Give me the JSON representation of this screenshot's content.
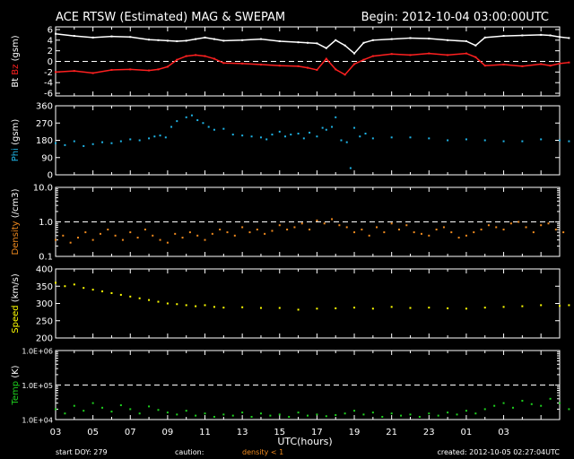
{
  "header": {
    "title": "ACE RTSW (Estimated) MAG & SWEPAM",
    "begin": "Begin: 2012-10-04 03:00:00UTC"
  },
  "footer": {
    "start_doy": "start DOY: 279",
    "caution_label": "caution:",
    "caution_text": "density < 1",
    "created": "created: 2012-10-05 02:27:04UTC"
  },
  "xaxis": {
    "title": "UTC(hours)",
    "tick_labels": [
      "03",
      "05",
      "07",
      "09",
      "11",
      "13",
      "15",
      "17",
      "19",
      "21",
      "23",
      "01",
      "03"
    ]
  },
  "colors": {
    "bt": "#ffffff",
    "bz": "#ff2020",
    "phi": "#1fb4e6",
    "density": "#f08a1e",
    "speed": "#ffff00",
    "temp": "#1ed21e",
    "axis": "#ffffff"
  },
  "chart_data": [
    {
      "type": "line",
      "ylabel_parts": [
        "Bt",
        "Bz",
        "(gsm)"
      ],
      "yticks": [
        6,
        4,
        2,
        0,
        -2,
        -4,
        -6
      ],
      "ylim": [
        -6.5,
        6.5
      ],
      "dashed_y": [
        0
      ],
      "series": [
        {
          "name": "Bt",
          "x": [
            0,
            1,
            2,
            3,
            4,
            5,
            5.5,
            6,
            6.5,
            7,
            7.5,
            8,
            8.5,
            9,
            10,
            11,
            12,
            13,
            13.5,
            14,
            14.5,
            15,
            15.5,
            16,
            16.5,
            17,
            18,
            19,
            20,
            21,
            22,
            22.5,
            23,
            24,
            25,
            26,
            26.5,
            27,
            27.5
          ],
          "y": [
            5.2,
            4.8,
            4.5,
            4.7,
            4.6,
            4.1,
            4.0,
            3.9,
            3.8,
            3.9,
            4.2,
            4.5,
            4.2,
            3.9,
            4.0,
            4.2,
            3.8,
            3.6,
            3.5,
            3.4,
            2.5,
            4.0,
            3.0,
            1.5,
            3.5,
            4.0,
            4.2,
            4.4,
            4.3,
            4.0,
            3.8,
            3.0,
            4.5,
            4.8,
            4.9,
            5.0,
            4.9,
            4.6,
            4.4
          ]
        },
        {
          "name": "Bz",
          "x": [
            0,
            1,
            2,
            3,
            4,
            5,
            5.5,
            6,
            6.5,
            7,
            7.5,
            8,
            8.5,
            9,
            10,
            11,
            12,
            13,
            13.5,
            14,
            14.5,
            15,
            15.5,
            16,
            16.5,
            17,
            18,
            19,
            20,
            21,
            22,
            22.5,
            23,
            24,
            25,
            26,
            26.5,
            27,
            27.5
          ],
          "y": [
            -2.0,
            -1.8,
            -2.2,
            -1.6,
            -1.5,
            -1.7,
            -1.5,
            -1.0,
            0.3,
            1.0,
            1.2,
            1.0,
            0.5,
            -0.3,
            -0.4,
            -0.6,
            -0.8,
            -0.9,
            -1.2,
            -1.6,
            0.5,
            -1.5,
            -2.5,
            -0.5,
            0.3,
            1.0,
            1.4,
            1.2,
            1.5,
            1.2,
            1.5,
            0.8,
            -0.8,
            -0.6,
            -0.9,
            -0.5,
            -0.8,
            -0.4,
            -0.2
          ]
        }
      ]
    },
    {
      "type": "scatter",
      "ylabel_parts": [
        "Phi",
        "(gsm)"
      ],
      "yticks": [
        360,
        270,
        180,
        90,
        0
      ],
      "ylim": [
        0,
        360
      ],
      "dashed_y": [],
      "series": [
        {
          "name": "Phi",
          "x": [
            0,
            0.5,
            1,
            1.5,
            2,
            2.5,
            3,
            3.5,
            4,
            4.5,
            5,
            5.3,
            5.6,
            5.9,
            6.2,
            6.5,
            7,
            7.3,
            7.6,
            7.9,
            8.2,
            8.5,
            9,
            9.5,
            10,
            10.5,
            11,
            11.3,
            11.6,
            12,
            12.3,
            12.6,
            13,
            13.3,
            13.6,
            14,
            14.3,
            14.5,
            14.8,
            15,
            15.3,
            15.6,
            15.8,
            16,
            16.3,
            16.6,
            17,
            18,
            19,
            20,
            21,
            22,
            23,
            24,
            25,
            26,
            27,
            27.5
          ],
          "y": [
            165,
            155,
            175,
            150,
            160,
            170,
            165,
            175,
            185,
            180,
            190,
            200,
            205,
            195,
            250,
            280,
            300,
            310,
            285,
            270,
            250,
            235,
            240,
            210,
            205,
            200,
            195,
            185,
            210,
            225,
            200,
            210,
            215,
            190,
            220,
            200,
            245,
            235,
            250,
            300,
            180,
            170,
            35,
            245,
            200,
            215,
            190,
            195,
            195,
            190,
            180,
            185,
            180,
            175,
            175,
            185,
            180,
            175
          ]
        }
      ]
    },
    {
      "type": "scatter",
      "ylabel_parts": [
        "Density",
        "(/cm3)"
      ],
      "yscale": "log",
      "ytick_values": [
        10,
        1,
        0.1
      ],
      "ytick_labels": [
        "10.0",
        "1.0",
        "0.1"
      ],
      "ylim": [
        0.1,
        10
      ],
      "dashed_y": [
        1
      ],
      "series": [
        {
          "name": "Density",
          "x": [
            0,
            0.4,
            0.8,
            1.2,
            1.6,
            2,
            2.4,
            2.8,
            3.2,
            3.6,
            4,
            4.4,
            4.8,
            5.2,
            5.6,
            6,
            6.4,
            6.8,
            7.2,
            7.6,
            8,
            8.4,
            8.8,
            9.2,
            9.6,
            10,
            10.4,
            10.8,
            11.2,
            11.6,
            12,
            12.4,
            12.8,
            13.2,
            13.6,
            14,
            14.4,
            14.8,
            15.2,
            15.6,
            16,
            16.4,
            16.8,
            17.2,
            17.6,
            18,
            18.4,
            18.8,
            19.2,
            19.6,
            20,
            20.4,
            20.8,
            21.2,
            21.6,
            22,
            22.4,
            22.8,
            23.2,
            23.6,
            24,
            24.4,
            24.8,
            25.2,
            25.6,
            26,
            26.4,
            26.8,
            27.2
          ],
          "y": [
            0.3,
            0.4,
            0.25,
            0.35,
            0.5,
            0.3,
            0.45,
            0.6,
            0.4,
            0.3,
            0.5,
            0.35,
            0.6,
            0.4,
            0.3,
            0.25,
            0.45,
            0.35,
            0.5,
            0.4,
            0.3,
            0.45,
            0.6,
            0.5,
            0.4,
            0.7,
            0.5,
            0.6,
            0.45,
            0.55,
            0.8,
            0.6,
            0.7,
            0.9,
            0.6,
            1.1,
            0.9,
            1.2,
            0.8,
            0.7,
            0.5,
            0.6,
            0.4,
            0.7,
            0.5,
            0.9,
            0.6,
            0.8,
            0.5,
            0.45,
            0.4,
            0.6,
            0.7,
            0.5,
            0.35,
            0.4,
            0.5,
            0.6,
            0.8,
            0.7,
            0.6,
            0.9,
            1.0,
            0.7,
            0.5,
            0.8,
            0.9,
            0.6,
            0.5
          ]
        }
      ]
    },
    {
      "type": "scatter",
      "ylabel_parts": [
        "Speed",
        "(km/s)"
      ],
      "yticks": [
        400,
        350,
        300,
        250,
        200
      ],
      "ylim": [
        200,
        400
      ],
      "dashed_y": [],
      "series": [
        {
          "name": "Speed",
          "x": [
            0,
            0.5,
            1,
            1.5,
            2,
            2.5,
            3,
            3.5,
            4,
            4.5,
            5,
            5.5,
            6,
            6.5,
            7,
            7.5,
            8,
            8.5,
            9,
            10,
            11,
            12,
            13,
            14,
            15,
            16,
            17,
            18,
            19,
            20,
            21,
            22,
            23,
            24,
            25,
            26,
            27,
            27.5
          ],
          "y": [
            360,
            350,
            355,
            345,
            340,
            335,
            330,
            325,
            320,
            315,
            310,
            305,
            300,
            298,
            295,
            292,
            295,
            290,
            288,
            289,
            287,
            287,
            282,
            285,
            286,
            288,
            285,
            290,
            287,
            288,
            286,
            285,
            288,
            290,
            292,
            295,
            293,
            295
          ]
        }
      ]
    },
    {
      "type": "scatter",
      "ylabel_parts": [
        "Temp",
        "(K)"
      ],
      "yscale": "log",
      "ytick_values": [
        1000000,
        100000,
        10000
      ],
      "ytick_labels": [
        "1.0E+06",
        "1.0E+05",
        "1.0E+04"
      ],
      "ylim": [
        10000,
        1000000
      ],
      "dashed_y": [
        100000
      ],
      "series": [
        {
          "name": "Temp",
          "x": [
            0,
            0.5,
            1,
            1.5,
            2,
            2.5,
            3,
            3.5,
            4,
            4.5,
            5,
            5.5,
            6,
            6.5,
            7,
            7.5,
            8,
            8.5,
            9,
            9.5,
            10,
            10.5,
            11,
            11.5,
            12,
            12.5,
            13,
            13.5,
            14,
            14.5,
            15,
            15.5,
            16,
            16.5,
            17,
            17.5,
            18,
            18.5,
            19,
            19.5,
            20,
            20.5,
            21,
            21.5,
            22,
            22.5,
            23,
            23.5,
            24,
            24.5,
            25,
            25.5,
            26,
            26.5,
            27,
            27.5
          ],
          "y": [
            20000,
            15000,
            25000,
            18000,
            30000,
            22000,
            17000,
            26000,
            20000,
            15000,
            24000,
            19000,
            16000,
            14000,
            18000,
            13000,
            15000,
            12000,
            14000,
            13000,
            16000,
            12000,
            15000,
            13000,
            14000,
            12000,
            16000,
            13000,
            14000,
            12500,
            13500,
            15000,
            18000,
            14000,
            16000,
            12000,
            15000,
            13000,
            14000,
            12000,
            15000,
            13000,
            16000,
            14000,
            18000,
            15000,
            20000,
            25000,
            30000,
            22000,
            35000,
            28000,
            25000,
            40000,
            30000,
            20000
          ]
        }
      ]
    }
  ]
}
